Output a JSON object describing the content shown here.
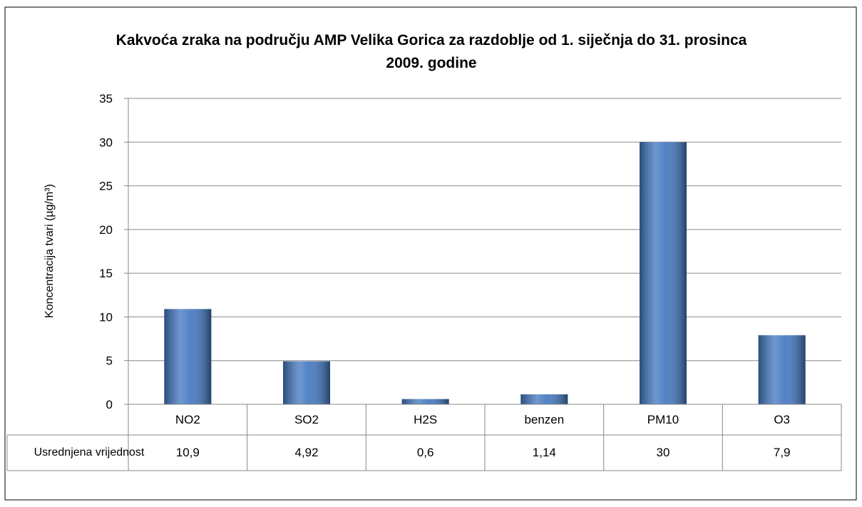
{
  "chart_data": {
    "type": "bar",
    "title": "Kakvoća zraka na području AMP Velika Gorica za razdoblje od 1. siječnja do 31. prosinca 2009. godine",
    "y_label": "Koncentracija tvari (µg/m³)",
    "categories": [
      "NO2",
      "SO2",
      "H2S",
      "benzen",
      "PM10",
      "O3"
    ],
    "series": [
      {
        "name": "Usrednjena vrijednost",
        "color": "#3f75bf",
        "values": [
          10.9,
          4.92,
          0.6,
          1.14,
          30,
          7.9
        ],
        "value_labels": [
          "10,9",
          "4,92",
          "0,6",
          "1,14",
          "30",
          "7,9"
        ]
      }
    ],
    "ylim": [
      0,
      35
    ],
    "yticks": [
      0,
      5,
      10,
      15,
      20,
      25,
      30,
      35
    ],
    "grid": true
  }
}
